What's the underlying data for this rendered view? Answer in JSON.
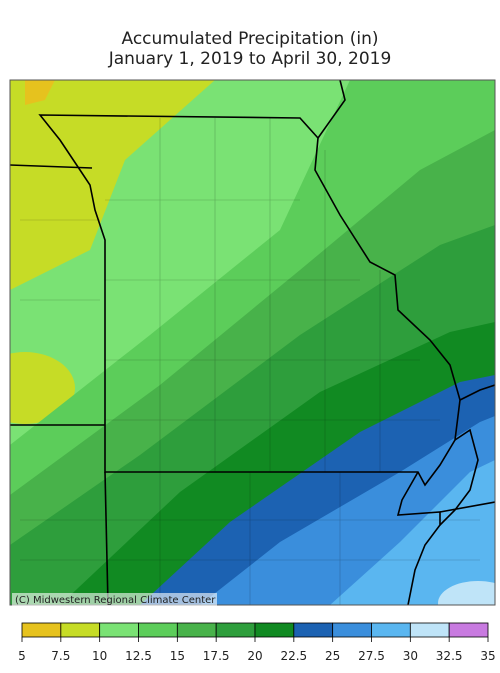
{
  "title": "Accumulated Precipitation (in)",
  "subtitle": "January 1, 2019 to April 30, 2019",
  "credit": "(C) Midwestern Regional Climate Center",
  "legend": {
    "breaks": [
      5,
      7.5,
      10,
      12.5,
      15,
      17.5,
      20,
      22.5,
      25,
      27.5,
      30,
      32.5,
      35
    ],
    "colors": [
      "#e6c21e",
      "#c6dc26",
      "#7ae274",
      "#5ccd5a",
      "#48b24a",
      "#2e9e3c",
      "#118a22",
      "#1c62b2",
      "#3a8edc",
      "#5ab6f0",
      "#bfe4f8",
      "#c87ae0"
    ]
  }
}
